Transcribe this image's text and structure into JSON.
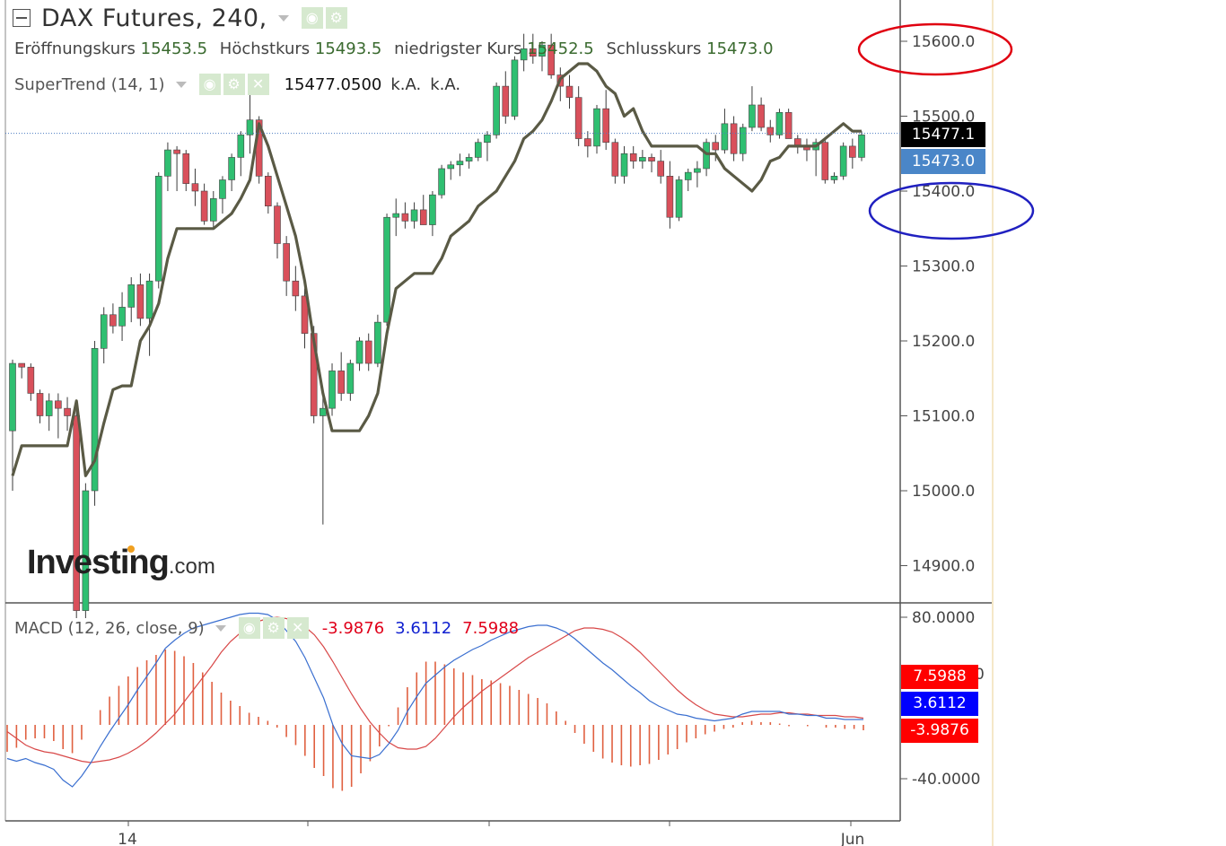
{
  "header": {
    "title": "DAX Futures, 240,",
    "ohlc": [
      {
        "label": "Eröffnungskurs",
        "value": "15453.5"
      },
      {
        "label": "Höchstkurs",
        "value": "15493.5"
      },
      {
        "label": "niedrigster Kurs",
        "value": "15452.5"
      },
      {
        "label": "Schlusskurs",
        "value": "15473.0"
      }
    ]
  },
  "supertrend": {
    "label": "SuperTrend (14, 1)",
    "value": "15477.0500",
    "na1": "k.A.",
    "na2": "k.A."
  },
  "macd": {
    "label": "MACD (12, 26, close, 9)",
    "hist": "-3.9876",
    "macd": "3.6112",
    "signal": "7.5988"
  },
  "price_axis": {
    "ticks": [
      "15600.0",
      "15500.0",
      "15400.0",
      "15300.0",
      "15200.0",
      "15100.0",
      "15000.0",
      "14900.0"
    ]
  },
  "macd_axis": {
    "ticks": [
      "80.0000",
      "-40.0000"
    ],
    "partial": "0"
  },
  "tags": {
    "last_price": "15477.1",
    "close": "15473.0",
    "macd_signal": "7.5988",
    "macd_line": "3.6112",
    "macd_hist": "-3.9876"
  },
  "x_labels": [
    "14",
    "Jun"
  ],
  "logo": {
    "main": "Investing",
    "domain": ".com"
  },
  "colors": {
    "up": "#2fbf71",
    "down": "#d9505b",
    "supertrend": "#5a5a45",
    "macd_line": "#3a6fd0",
    "signal_line": "#d84848",
    "hist": "#e06040",
    "tag_black": "#000000",
    "tag_blue": "#4a86c8",
    "tag_red": "#ff0000",
    "tag_macd_blue": "#0000ff",
    "annot_red": "#e00010",
    "annot_blue": "#2020c0"
  },
  "chart_data": [
    {
      "type": "candlestick",
      "title": "DAX Futures, 240",
      "ylim": [
        14850,
        15650
      ],
      "candles": [
        [
          15080,
          15175,
          15000,
          15170
        ],
        [
          15170,
          15170,
          15150,
          15165
        ],
        [
          15165,
          15170,
          15120,
          15130
        ],
        [
          15130,
          15135,
          15090,
          15100
        ],
        [
          15100,
          15130,
          15080,
          15120
        ],
        [
          15120,
          15130,
          15070,
          15110
        ],
        [
          15110,
          15125,
          15080,
          15100
        ],
        [
          15100,
          15110,
          14830,
          14840
        ],
        [
          14840,
          15010,
          14830,
          15000
        ],
        [
          15000,
          15200,
          14980,
          15190
        ],
        [
          15190,
          15245,
          15170,
          15235
        ],
        [
          15235,
          15250,
          15210,
          15220
        ],
        [
          15220,
          15265,
          15200,
          15245
        ],
        [
          15245,
          15285,
          15225,
          15275
        ],
        [
          15275,
          15290,
          15220,
          15230
        ],
        [
          15230,
          15290,
          15180,
          15280
        ],
        [
          15280,
          15425,
          15270,
          15420
        ],
        [
          15420,
          15465,
          15400,
          15455
        ],
        [
          15455,
          15460,
          15400,
          15450
        ],
        [
          15450,
          15455,
          15400,
          15410
        ],
        [
          15410,
          15430,
          15380,
          15400
        ],
        [
          15400,
          15410,
          15355,
          15360
        ],
        [
          15360,
          15400,
          15350,
          15390
        ],
        [
          15390,
          15420,
          15370,
          15415
        ],
        [
          15415,
          15450,
          15400,
          15445
        ],
        [
          15445,
          15480,
          15420,
          15475
        ],
        [
          15475,
          15535,
          15450,
          15495
        ],
        [
          15495,
          15500,
          15410,
          15420
        ],
        [
          15420,
          15425,
          15370,
          15380
        ],
        [
          15380,
          15385,
          15310,
          15330
        ],
        [
          15330,
          15340,
          15260,
          15280
        ],
        [
          15280,
          15300,
          15240,
          15260
        ],
        [
          15260,
          15270,
          15190,
          15210
        ],
        [
          15210,
          15220,
          15090,
          15100
        ],
        [
          15100,
          15125,
          14955,
          15110
        ],
        [
          15110,
          15170,
          15100,
          15160
        ],
        [
          15160,
          15185,
          15120,
          15130
        ],
        [
          15130,
          15175,
          15120,
          15170
        ],
        [
          15170,
          15205,
          15160,
          15200
        ],
        [
          15200,
          15210,
          15160,
          15170
        ],
        [
          15170,
          15235,
          15165,
          15225
        ],
        [
          15225,
          15370,
          15220,
          15365
        ],
        [
          15365,
          15390,
          15340,
          15370
        ],
        [
          15370,
          15385,
          15350,
          15360
        ],
        [
          15360,
          15385,
          15350,
          15375
        ],
        [
          15375,
          15395,
          15355,
          15355
        ],
        [
          15355,
          15400,
          15340,
          15395
        ],
        [
          15395,
          15435,
          15390,
          15430
        ],
        [
          15430,
          15440,
          15415,
          15435
        ],
        [
          15435,
          15450,
          15420,
          15440
        ],
        [
          15440,
          15450,
          15430,
          15445
        ],
        [
          15445,
          15470,
          15440,
          15465
        ],
        [
          15465,
          15480,
          15440,
          15475
        ],
        [
          15475,
          15545,
          15470,
          15540
        ],
        [
          15540,
          15560,
          15490,
          15500
        ],
        [
          15500,
          15580,
          15495,
          15575
        ],
        [
          15575,
          15610,
          15560,
          15590
        ],
        [
          15590,
          15610,
          15570,
          15580
        ],
        [
          15580,
          15600,
          15560,
          15595
        ],
        [
          15595,
          15610,
          15550,
          15555
        ],
        [
          15555,
          15565,
          15520,
          15540
        ],
        [
          15540,
          15555,
          15510,
          15525
        ],
        [
          15525,
          15540,
          15460,
          15470
        ],
        [
          15470,
          15480,
          15445,
          15460
        ],
        [
          15460,
          15515,
          15450,
          15510
        ],
        [
          15510,
          15535,
          15455,
          15465
        ],
        [
          15465,
          15470,
          15410,
          15420
        ],
        [
          15420,
          15460,
          15410,
          15450
        ],
        [
          15450,
          15460,
          15430,
          15440
        ],
        [
          15440,
          15455,
          15430,
          15445
        ],
        [
          15445,
          15450,
          15425,
          15440
        ],
        [
          15440,
          15455,
          15410,
          15420
        ],
        [
          15420,
          15440,
          15350,
          15365
        ],
        [
          15365,
          15420,
          15360,
          15415
        ],
        [
          15415,
          15430,
          15400,
          15425
        ],
        [
          15425,
          15440,
          15405,
          15430
        ],
        [
          15430,
          15470,
          15420,
          15465
        ],
        [
          15465,
          15475,
          15440,
          15455
        ],
        [
          15455,
          15510,
          15450,
          15490
        ],
        [
          15490,
          15500,
          15440,
          15450
        ],
        [
          15450,
          15490,
          15440,
          15485
        ],
        [
          15485,
          15540,
          15480,
          15515
        ],
        [
          15515,
          15525,
          15480,
          15485
        ],
        [
          15485,
          15495,
          15465,
          15475
        ],
        [
          15475,
          15510,
          15470,
          15505
        ],
        [
          15505,
          15510,
          15470,
          15470
        ],
        [
          15470,
          15475,
          15450,
          15460
        ],
        [
          15460,
          15470,
          15440,
          15455
        ],
        [
          15455,
          15470,
          15420,
          15465
        ],
        [
          15465,
          15470,
          15410,
          15415
        ],
        [
          15415,
          15425,
          15410,
          15420
        ],
        [
          15420,
          15465,
          15415,
          15460
        ],
        [
          15460,
          15470,
          15430,
          15445
        ],
        [
          15445,
          15480,
          15440,
          15475
        ]
      ],
      "supertrend": [
        15020,
        15060,
        15060,
        15060,
        15060,
        15060,
        15060,
        15120,
        15020,
        15040,
        15090,
        15135,
        15140,
        15140,
        15200,
        15220,
        15250,
        15310,
        15350,
        15350,
        15350,
        15350,
        15350,
        15360,
        15370,
        15390,
        15415,
        15490,
        15460,
        15420,
        15380,
        15340,
        15280,
        15200,
        15130,
        15080,
        15080,
        15080,
        15080,
        15100,
        15130,
        15210,
        15270,
        15280,
        15290,
        15290,
        15290,
        15310,
        15340,
        15350,
        15360,
        15380,
        15390,
        15400,
        15420,
        15440,
        15470,
        15480,
        15495,
        15520,
        15550,
        15560,
        15570,
        15570,
        15560,
        15540,
        15530,
        15500,
        15510,
        15480,
        15460,
        15460,
        15460,
        15460,
        15460,
        15460,
        15450,
        15450,
        15430,
        15420,
        15410,
        15400,
        15415,
        15440,
        15445,
        15460,
        15460,
        15460,
        15460,
        15470,
        15480,
        15490,
        15480,
        15480
      ]
    },
    {
      "type": "macd",
      "ylim": [
        -65,
        90
      ],
      "macd": [
        -25,
        -27,
        -25,
        -28,
        -30,
        -33,
        -41,
        -46,
        -38,
        -28,
        -16,
        -5,
        5,
        15,
        26,
        36,
        46,
        57,
        63,
        68,
        72,
        74,
        76,
        78,
        80,
        82,
        83,
        83,
        82,
        78,
        70,
        62,
        50,
        35,
        20,
        0,
        -14,
        -23,
        -24,
        -25,
        -22,
        -14,
        -4,
        10,
        21,
        31,
        37,
        43,
        48,
        52,
        56,
        59,
        63,
        66,
        69,
        71,
        73,
        74,
        74,
        72,
        69,
        64,
        58,
        52,
        46,
        41,
        35,
        29,
        24,
        18,
        14,
        11,
        8,
        7,
        5,
        4,
        3,
        4,
        5,
        8,
        10,
        10,
        10,
        10,
        8,
        8,
        7,
        7,
        5,
        5,
        4,
        4,
        4
      ],
      "signal": [
        -5,
        -10,
        -15,
        -18,
        -20,
        -21,
        -23,
        -25,
        -27,
        -28,
        -27,
        -26,
        -24,
        -21,
        -17,
        -12,
        -6,
        1,
        8,
        17,
        26,
        35,
        44,
        54,
        62,
        68,
        74,
        77,
        79,
        80,
        79,
        77,
        73,
        67,
        58,
        47,
        35,
        23,
        12,
        2,
        -6,
        -13,
        -17,
        -18,
        -18,
        -16,
        -10,
        -2,
        6,
        13,
        19,
        25,
        30,
        35,
        40,
        45,
        50,
        54,
        58,
        62,
        66,
        70,
        72,
        72,
        71,
        69,
        65,
        60,
        54,
        47,
        40,
        33,
        26,
        20,
        15,
        11,
        8,
        7,
        6,
        6,
        7,
        8,
        8,
        9,
        9,
        8,
        8,
        7,
        7,
        7,
        6,
        6,
        5
      ],
      "hist": [
        -20,
        -17,
        -11,
        -10,
        -10,
        -12,
        -18,
        -21,
        -11,
        0,
        11,
        21,
        29,
        36,
        43,
        48,
        52,
        56,
        55,
        51,
        46,
        39,
        32,
        24,
        18,
        14,
        9,
        6,
        3,
        -2,
        -9,
        -15,
        -23,
        -32,
        -38,
        -47,
        -49,
        -46,
        -36,
        -27,
        -16,
        -1,
        13,
        28,
        39,
        47,
        47,
        45,
        42,
        39,
        37,
        34,
        33,
        31,
        29,
        26,
        23,
        20,
        16,
        10,
        3,
        -6,
        -14,
        -20,
        -25,
        -28,
        -30,
        -31,
        -30,
        -29,
        -26,
        -22,
        -18,
        -13,
        -10,
        -7,
        -5,
        -3,
        -2,
        2,
        3,
        2,
        2,
        1,
        -1,
        0,
        -1,
        0,
        -2,
        -2,
        -3,
        -3,
        -4
      ]
    }
  ],
  "annotations": [
    {
      "shape": "ellipse",
      "color": "red",
      "around": "15600.0"
    },
    {
      "shape": "ellipse",
      "color": "blue",
      "around": "15400.0"
    }
  ]
}
